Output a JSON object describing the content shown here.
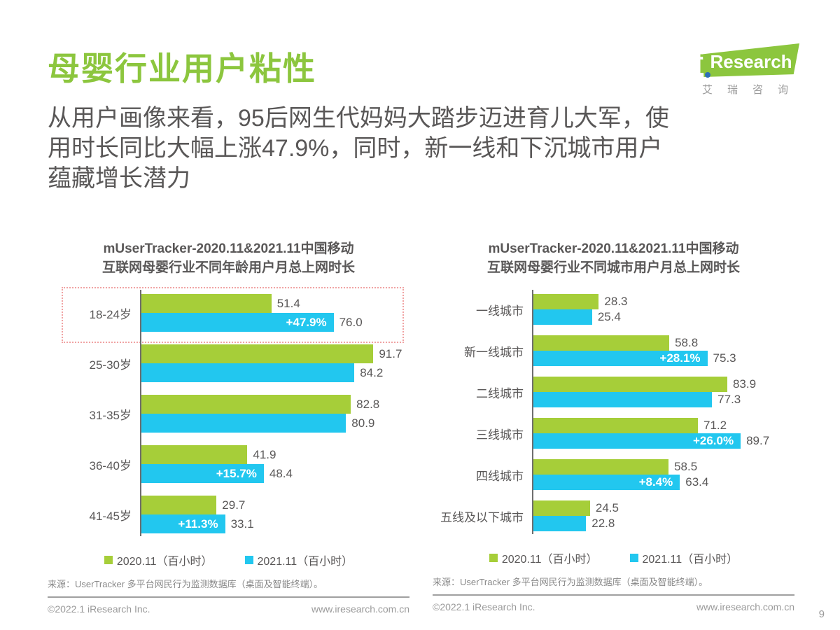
{
  "page": {
    "title": "母婴行业用户粘性",
    "intro_lines": [
      "从用户画像来看，95后网生代妈妈大踏步迈进育儿大军，使",
      "用时长同比大幅上涨47.9%，同时，新一线和下沉城市用户",
      "蕴藏增长潜力"
    ],
    "page_number": "9",
    "colors": {
      "green": "#a6ce39",
      "blue": "#22c7ef",
      "title_green": "#8cc63e",
      "highlight": "#f0a3a3"
    }
  },
  "logo": {
    "i": "i",
    "brand": "Research",
    "subtext": "艾瑞咨询"
  },
  "source_note": "来源：UserTracker 多平台网民行为监测数据库（桌面及智能终端）。",
  "footer": {
    "copyright": "©2022.1 iResearch Inc.",
    "website": "www.iresearch.com.cn"
  },
  "chart_data": [
    {
      "type": "bar",
      "orientation": "horizontal",
      "title_lines": [
        "mUserTracker-2020.11&2021.11中国移动",
        "互联网母婴行业不同年龄用户月总上网时长"
      ],
      "categories": [
        "18-24岁",
        "25-30岁",
        "31-35岁",
        "36-40岁",
        "41-45岁"
      ],
      "series": [
        {
          "name": "2020.11（百小时）",
          "values": [
            "51.4",
            "91.7",
            "82.8",
            "41.9",
            "29.7"
          ],
          "pct_labels": [
            null,
            null,
            null,
            null,
            null
          ]
        },
        {
          "name": "2021.11（百小时）",
          "values": [
            "76.0",
            "84.2",
            "80.9",
            "48.4",
            "33.1"
          ],
          "pct_labels": [
            "+47.9%",
            null,
            null,
            "+15.7%",
            "+11.3%"
          ]
        }
      ],
      "legend": [
        "2020.11（百小时）",
        "2021.11（百小时）"
      ],
      "xmax": 106,
      "grid": false,
      "legend_position": "bottom",
      "highlighted_category": "18-24岁"
    },
    {
      "type": "bar",
      "orientation": "horizontal",
      "title_lines": [
        "mUserTracker-2020.11&2021.11中国移动",
        "互联网母婴行业不同城市用户月总上网时长"
      ],
      "categories": [
        "一线城市",
        "新一线城市",
        "二线城市",
        "三线城市",
        "四线城市",
        "五线及以下城市"
      ],
      "series": [
        {
          "name": "2020.11（百小时）",
          "values": [
            "28.3",
            "58.8",
            "83.9",
            "71.2",
            "58.5",
            "24.5"
          ],
          "pct_labels": [
            null,
            null,
            null,
            null,
            null,
            null
          ]
        },
        {
          "name": "2021.11（百小时）",
          "values": [
            "25.4",
            "75.3",
            "77.3",
            "89.7",
            "63.4",
            "22.8"
          ],
          "pct_labels": [
            null,
            "+28.1%",
            null,
            "+26.0%",
            "+8.4%",
            null
          ]
        }
      ],
      "legend": [
        "2020.11（百小时）",
        "2021.11（百小时）"
      ],
      "xmax": 113,
      "grid": false,
      "legend_position": "bottom"
    }
  ]
}
